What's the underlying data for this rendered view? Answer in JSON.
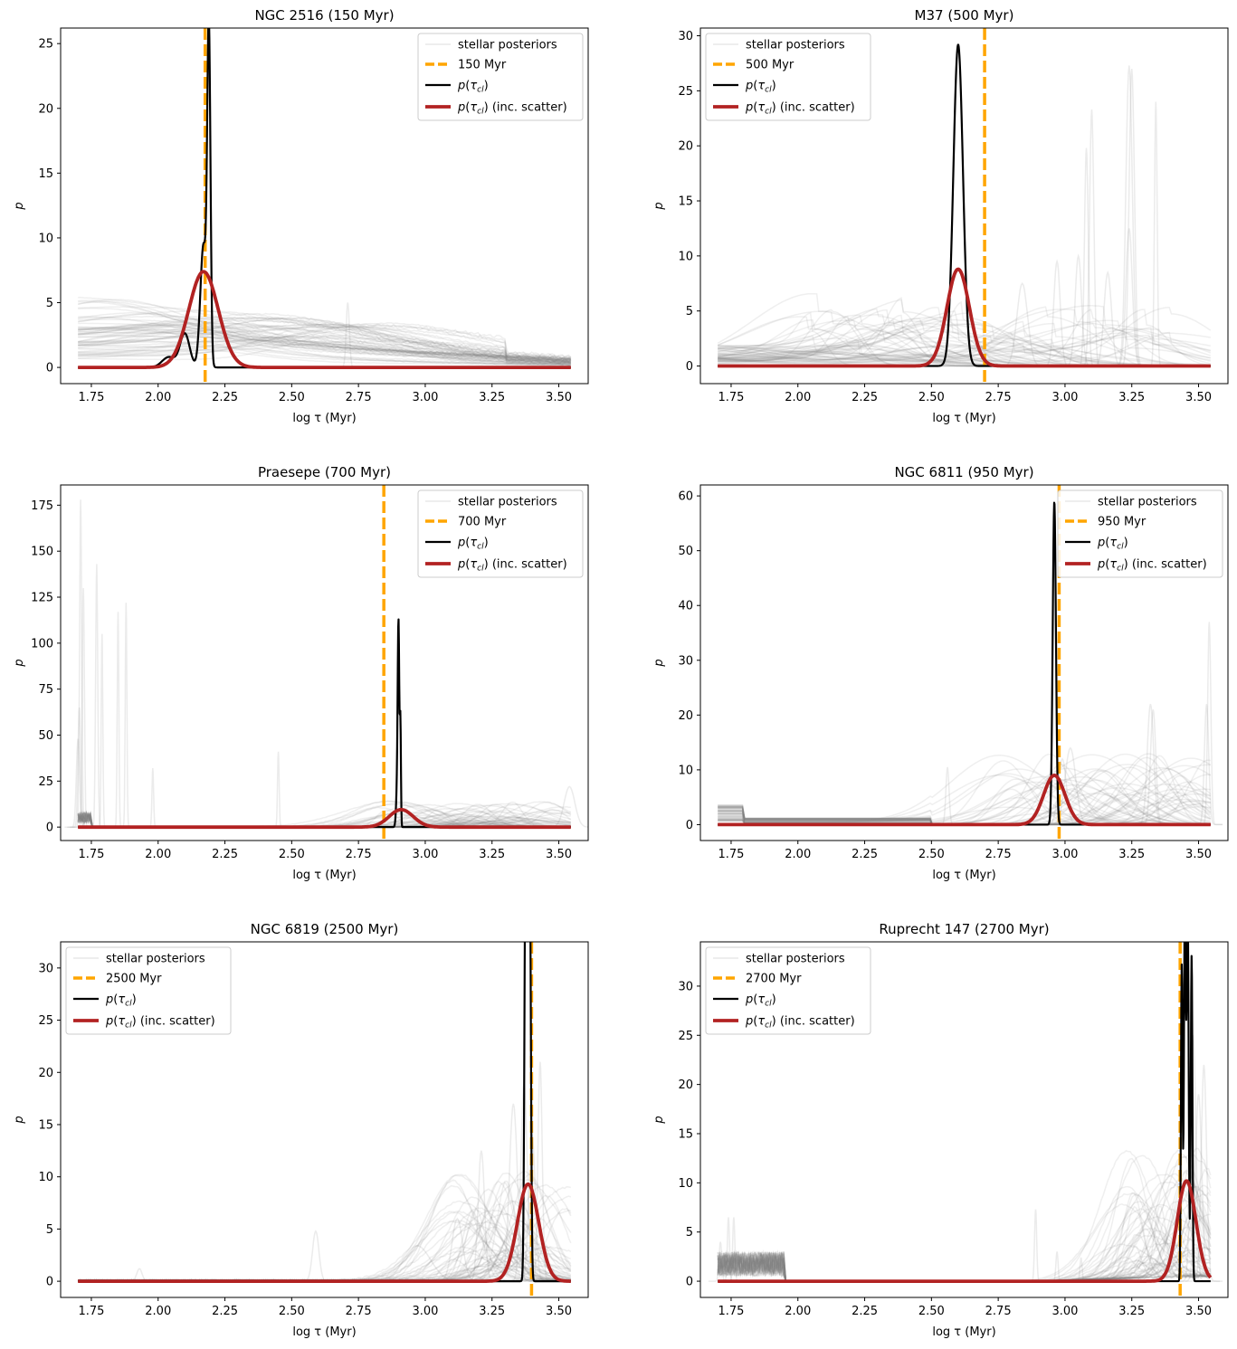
{
  "figure": {
    "n_panels": 6,
    "layout": "3 rows x 2 columns"
  },
  "colors": {
    "stellar": "#808080",
    "reference_age": "#ffa500",
    "posterior": "#000000",
    "posterior_scatter": "#b22222"
  },
  "chart_data": [
    {
      "type": "line",
      "title": "NGC 2516 (150 Myr)",
      "xlabel": "log τ (Myr)",
      "ylabel": "p",
      "xlim": [
        1.635,
        3.61
      ],
      "ylim": [
        -1.25,
        26.2
      ],
      "xticks": [
        1.75,
        2.0,
        2.25,
        2.5,
        2.75,
        3.0,
        3.25,
        3.5
      ],
      "xtick_labels": [
        "1.75",
        "2.00",
        "2.25",
        "2.50",
        "2.75",
        "3.00",
        "3.25",
        "3.50"
      ],
      "yticks": [
        0,
        5,
        10,
        15,
        20,
        25
      ],
      "ytick_labels": [
        "0",
        "5",
        "10",
        "15",
        "20",
        "25"
      ],
      "legend_position": "top-right",
      "legend": [
        "stellar posteriors",
        "150 Myr",
        "p(τcl)",
        "p(τcl) (inc. scatter)"
      ],
      "reference_age_log": 2.176,
      "posterior_peaks": [
        {
          "mu": 2.19,
          "sigma": 0.006,
          "amp": 24.8
        },
        {
          "mu": 2.17,
          "sigma": 0.012,
          "amp": 9.5
        },
        {
          "mu": 2.1,
          "sigma": 0.018,
          "amp": 2.6
        },
        {
          "mu": 2.04,
          "sigma": 0.025,
          "amp": 0.8
        }
      ],
      "scatter_gaussian": {
        "mu": 2.17,
        "sigma": 0.055,
        "amp": 7.4
      },
      "stellar_profile": "young",
      "stellar_spikes": [
        [
          2.71,
          5.0,
          0.006
        ]
      ]
    },
    {
      "type": "line",
      "title": "M37 (500 Myr)",
      "xlabel": "log τ (Myr)",
      "ylabel": "p",
      "xlim": [
        1.635,
        3.61
      ],
      "ylim": [
        -1.6,
        30.7
      ],
      "xticks": [
        1.75,
        2.0,
        2.25,
        2.5,
        2.75,
        3.0,
        3.25,
        3.5
      ],
      "xtick_labels": [
        "1.75",
        "2.00",
        "2.25",
        "2.50",
        "2.75",
        "3.00",
        "3.25",
        "3.50"
      ],
      "yticks": [
        0,
        5,
        10,
        15,
        20,
        25,
        30
      ],
      "ytick_labels": [
        "0",
        "5",
        "10",
        "15",
        "20",
        "25",
        "30"
      ],
      "legend_position": "top-left",
      "legend": [
        "stellar posteriors",
        "500 Myr",
        "p(τcl)",
        "p(τcl) (inc. scatter)"
      ],
      "reference_age_log": 2.699,
      "posterior_peaks": [
        {
          "mu": 2.6,
          "sigma": 0.018,
          "amp": 29.2
        }
      ],
      "scatter_gaussian": {
        "mu": 2.6,
        "sigma": 0.042,
        "amp": 8.8
      },
      "stellar_profile": "spread_old",
      "stellar_spikes": [
        [
          3.24,
          27.3,
          0.012
        ],
        [
          3.25,
          27.0,
          0.01
        ],
        [
          3.34,
          24.0,
          0.005
        ],
        [
          3.1,
          23.3,
          0.008
        ],
        [
          3.08,
          19.8,
          0.007
        ],
        [
          3.24,
          12.5,
          0.012
        ],
        [
          3.05,
          10.0,
          0.012
        ],
        [
          2.97,
          9.5,
          0.012
        ],
        [
          3.16,
          8.5,
          0.014
        ],
        [
          2.84,
          7.5,
          0.02
        ]
      ]
    },
    {
      "type": "line",
      "title": "Praesepe (700 Myr)",
      "xlabel": "log τ (Myr)",
      "ylabel": "p",
      "xlim": [
        1.635,
        3.61
      ],
      "ylim": [
        -7.3,
        186.0
      ],
      "xticks": [
        1.75,
        2.0,
        2.25,
        2.5,
        2.75,
        3.0,
        3.25,
        3.5
      ],
      "xtick_labels": [
        "1.75",
        "2.00",
        "2.25",
        "2.50",
        "2.75",
        "3.00",
        "3.25",
        "3.50"
      ],
      "yticks": [
        0,
        25,
        50,
        75,
        100,
        125,
        150,
        175
      ],
      "ytick_labels": [
        "0",
        "25",
        "50",
        "75",
        "100",
        "125",
        "150",
        "175"
      ],
      "legend_position": "top-right",
      "legend": [
        "stellar posteriors",
        "700 Myr",
        "p(τcl)",
        "p(τcl) (inc. scatter)"
      ],
      "reference_age_log": 2.845,
      "posterior_peaks": [
        {
          "mu": 2.9,
          "sigma": 0.003,
          "amp": 104.0
        },
        {
          "mu": 2.907,
          "sigma": 0.002,
          "amp": 55.0
        },
        {
          "mu": 2.895,
          "sigma": 0.004,
          "amp": 20.0
        }
      ],
      "scatter_gaussian": {
        "mu": 2.91,
        "sigma": 0.045,
        "amp": 9.5
      },
      "stellar_profile": "praesepe",
      "stellar_spikes": [
        [
          1.71,
          178.0,
          0.004
        ],
        [
          1.72,
          130.0,
          0.004
        ],
        [
          1.77,
          143.0,
          0.004
        ],
        [
          1.79,
          105.0,
          0.003
        ],
        [
          1.85,
          117.0,
          0.003
        ],
        [
          1.88,
          122.0,
          0.003
        ],
        [
          1.705,
          65.0,
          0.005
        ],
        [
          1.7,
          48.0,
          0.006
        ],
        [
          1.98,
          32.0,
          0.003
        ],
        [
          2.45,
          41.0,
          0.003
        ],
        [
          3.54,
          22.0,
          0.02
        ]
      ]
    },
    {
      "type": "line",
      "title": "NGC 6811 (950 Myr)",
      "xlabel": "log τ (Myr)",
      "ylabel": "p",
      "xlim": [
        1.635,
        3.61
      ],
      "ylim": [
        -2.9,
        62.0
      ],
      "xticks": [
        1.75,
        2.0,
        2.25,
        2.5,
        2.75,
        3.0,
        3.25,
        3.5
      ],
      "xtick_labels": [
        "1.75",
        "2.00",
        "2.25",
        "2.50",
        "2.75",
        "3.00",
        "3.25",
        "3.50"
      ],
      "yticks": [
        0,
        10,
        20,
        30,
        40,
        50,
        60
      ],
      "ytick_labels": [
        "0",
        "10",
        "20",
        "30",
        "40",
        "50",
        "60"
      ],
      "legend_position": "top-right",
      "legend": [
        "stellar posteriors",
        "950 Myr",
        "p(τcl)",
        "p(τcl) (inc. scatter)"
      ],
      "reference_age_log": 2.978,
      "posterior_peaks": [
        {
          "mu": 2.96,
          "sigma": 0.006,
          "amp": 59.0
        }
      ],
      "scatter_gaussian": {
        "mu": 2.96,
        "sigma": 0.04,
        "amp": 9.0
      },
      "stellar_profile": "ngc6811",
      "stellar_spikes": [
        [
          3.32,
          22.0,
          0.012
        ],
        [
          3.33,
          21.0,
          0.01
        ],
        [
          3.54,
          37.0,
          0.006
        ],
        [
          3.53,
          22.0,
          0.008
        ],
        [
          2.56,
          10.5,
          0.006
        ],
        [
          3.02,
          14.0,
          0.02
        ],
        [
          2.99,
          12.0,
          0.015
        ]
      ]
    },
    {
      "type": "line",
      "title": "NGC 6819 (2500 Myr)",
      "xlabel": "log τ (Myr)",
      "ylabel": "p",
      "xlim": [
        1.635,
        3.61
      ],
      "ylim": [
        -1.55,
        32.5
      ],
      "xticks": [
        1.75,
        2.0,
        2.25,
        2.5,
        2.75,
        3.0,
        3.25,
        3.5
      ],
      "xtick_labels": [
        "1.75",
        "2.00",
        "2.25",
        "2.50",
        "2.75",
        "3.00",
        "3.25",
        "3.50"
      ],
      "yticks": [
        0,
        5,
        10,
        15,
        20,
        25,
        30
      ],
      "ytick_labels": [
        "0",
        "5",
        "10",
        "15",
        "20",
        "25",
        "30"
      ],
      "legend_position": "top-left",
      "legend": [
        "stellar posteriors",
        "2500 Myr",
        "p(τcl)",
        "p(τcl) (inc. scatter)"
      ],
      "reference_age_log": 3.398,
      "posterior_peaks": [
        {
          "mu": 3.375,
          "sigma": 0.004,
          "amp": 31.0
        },
        {
          "mu": 3.392,
          "sigma": 0.004,
          "amp": 31.0
        },
        {
          "mu": 3.383,
          "sigma": 0.006,
          "amp": 28.5
        }
      ],
      "scatter_gaussian": {
        "mu": 3.385,
        "sigma": 0.04,
        "amp": 9.3
      },
      "stellar_profile": "old",
      "stellar_spikes": [
        [
          3.43,
          21.0,
          0.008
        ],
        [
          3.37,
          19.0,
          0.012
        ],
        [
          3.33,
          17.0,
          0.015
        ],
        [
          3.21,
          12.5,
          0.012
        ],
        [
          3.4,
          14.0,
          0.012
        ],
        [
          2.59,
          4.8,
          0.012
        ],
        [
          2.97,
          3.4,
          0.05
        ],
        [
          1.93,
          1.2,
          0.01
        ],
        [
          3.12,
          6.0,
          0.02
        ]
      ]
    },
    {
      "type": "line",
      "title": "Ruprecht 147 (2700 Myr)",
      "xlabel": "log τ (Myr)",
      "ylabel": "p",
      "xlim": [
        1.635,
        3.61
      ],
      "ylim": [
        -1.65,
        34.5
      ],
      "xticks": [
        1.75,
        2.0,
        2.25,
        2.5,
        2.75,
        3.0,
        3.25,
        3.5
      ],
      "xtick_labels": [
        "1.75",
        "2.00",
        "2.25",
        "2.50",
        "2.75",
        "3.00",
        "3.25",
        "3.50"
      ],
      "yticks": [
        0,
        5,
        10,
        15,
        20,
        25,
        30
      ],
      "ytick_labels": [
        "0",
        "5",
        "10",
        "15",
        "20",
        "25",
        "30"
      ],
      "legend_position": "top-left",
      "legend": [
        "stellar posteriors",
        "2700 Myr",
        "p(τcl)",
        "p(τcl) (inc. scatter)"
      ],
      "reference_age_log": 3.431,
      "posterior_peaks": [
        {
          "mu": 3.437,
          "sigma": 0.003,
          "amp": 32.0
        },
        {
          "mu": 3.448,
          "sigma": 0.003,
          "amp": 27.5
        },
        {
          "mu": 3.46,
          "sigma": 0.003,
          "amp": 23.0
        },
        {
          "mu": 3.474,
          "sigma": 0.003,
          "amp": 33.0
        },
        {
          "mu": 3.455,
          "sigma": 0.006,
          "amp": 20.0
        }
      ],
      "scatter_gaussian": {
        "mu": 3.455,
        "sigma": 0.035,
        "amp": 10.2
      },
      "stellar_profile": "old_rup",
      "stellar_spikes": [
        [
          1.74,
          6.5,
          0.004
        ],
        [
          1.76,
          6.5,
          0.004
        ],
        [
          1.71,
          4.0,
          0.005
        ],
        [
          2.89,
          7.3,
          0.004
        ],
        [
          2.97,
          3.0,
          0.004
        ],
        [
          3.06,
          2.4,
          0.004
        ],
        [
          3.48,
          25.0,
          0.01
        ],
        [
          3.52,
          22.0,
          0.01
        ],
        [
          3.5,
          19.0,
          0.012
        ]
      ]
    }
  ]
}
